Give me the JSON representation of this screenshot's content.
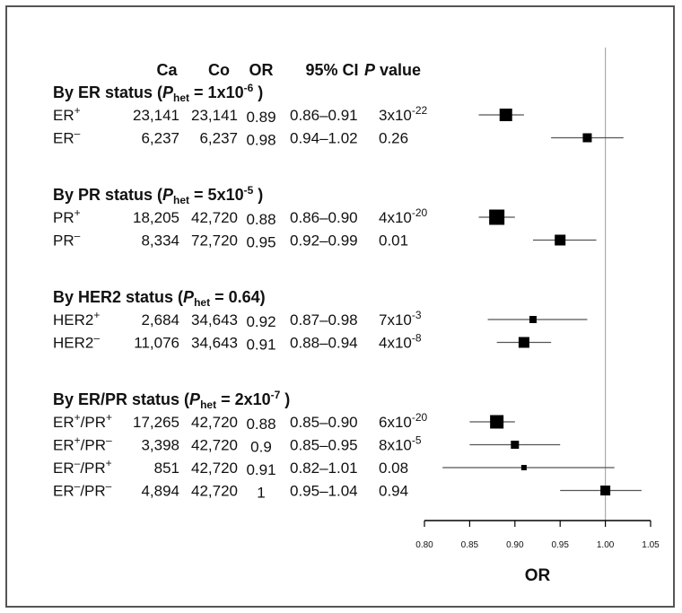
{
  "chart_data": {
    "type": "forest",
    "columns": {
      "ca": "Ca",
      "co": "Co",
      "or": "OR",
      "ci": "95% CI",
      "p_italic": "P",
      "p_rest": " value"
    },
    "groups": [
      {
        "label_pre": "By ER status (",
        "label_p": "P",
        "label_sub": "het",
        "label_eq": " = 1x10",
        "label_sup": "-6",
        "label_post": " )",
        "rows": [
          {
            "label": "ER",
            "label_sup": "+",
            "label2": "",
            "label2_sup": "",
            "ca": "23,141",
            "co": "23,141",
            "or_text": "0.89",
            "ci_text": "0.86–0.91",
            "p_base": "3x10",
            "p_exp": "-22",
            "or": 0.89,
            "lo": 0.86,
            "hi": 0.91,
            "size": 14
          },
          {
            "label": "ER",
            "label_sup": "–",
            "label2": "",
            "label2_sup": "",
            "ca": "6,237",
            "co": "6,237",
            "or_text": "0.98",
            "ci_text": "0.94–1.02",
            "p_base": "0.26",
            "p_exp": "",
            "or": 0.98,
            "lo": 0.94,
            "hi": 1.02,
            "size": 10
          }
        ]
      },
      {
        "label_pre": "By PR status (",
        "label_p": "P",
        "label_sub": "het",
        "label_eq": " = 5x10",
        "label_sup": "-5",
        "label_post": " )",
        "rows": [
          {
            "label": "PR",
            "label_sup": "+",
            "label2": "",
            "label2_sup": "",
            "ca": "18,205",
            "co": "42,720",
            "or_text": "0.88",
            "ci_text": "0.86–0.90",
            "p_base": "4x10",
            "p_exp": "-20",
            "or": 0.88,
            "lo": 0.86,
            "hi": 0.9,
            "size": 17
          },
          {
            "label": "PR",
            "label_sup": "–",
            "label2": "",
            "label2_sup": "",
            "ca": "8,334",
            "co": "72,720",
            "or_text": "0.95",
            "ci_text": "0.92–0.99",
            "p_base": "0.01",
            "p_exp": "",
            "or": 0.95,
            "lo": 0.92,
            "hi": 0.99,
            "size": 12
          }
        ]
      },
      {
        "label_pre": "By HER2 status (",
        "label_p": "P",
        "label_sub": "het",
        "label_eq": " = 0.64)",
        "label_sup": "",
        "label_post": "",
        "rows": [
          {
            "label": "HER2",
            "label_sup": "+",
            "label2": "",
            "label2_sup": "",
            "ca": "2,684",
            "co": "34,643",
            "or_text": "0.92",
            "ci_text": "0.87–0.98",
            "p_base": "7x10",
            "p_exp": "-3",
            "or": 0.92,
            "lo": 0.87,
            "hi": 0.98,
            "size": 8
          },
          {
            "label": "HER2",
            "label_sup": "–",
            "label2": "",
            "label2_sup": "",
            "ca": "11,076",
            "co": "34,643",
            "or_text": "0.91",
            "ci_text": "0.88–0.94",
            "p_base": "4x10",
            "p_exp": "-8",
            "or": 0.91,
            "lo": 0.88,
            "hi": 0.94,
            "size": 12
          }
        ]
      },
      {
        "label_pre": "By ER/PR status (",
        "label_p": "P",
        "label_sub": "het",
        "label_eq": " = 2x10",
        "label_sup": "-7",
        "label_post": " )",
        "rows": [
          {
            "label": "ER",
            "label_sup": "+",
            "label2": "/PR",
            "label2_sup": "+",
            "ca": "17,265",
            "co": "42,720",
            "or_text": "0.88",
            "ci_text": "0.85–0.90",
            "p_base": "6x10",
            "p_exp": "-20",
            "or": 0.88,
            "lo": 0.85,
            "hi": 0.9,
            "size": 15
          },
          {
            "label": "ER",
            "label_sup": "+",
            "label2": "/PR",
            "label2_sup": "–",
            "ca": "3,398",
            "co": "42,720",
            "or_text": "0.9",
            "ci_text": "0.85–0.95",
            "p_base": "8x10",
            "p_exp": "-5",
            "or": 0.9,
            "lo": 0.85,
            "hi": 0.95,
            "size": 9
          },
          {
            "label": "ER",
            "label_sup": "–",
            "label2": "/PR",
            "label2_sup": "+",
            "ca": "851",
            "co": "42,720",
            "or_text": "0.91",
            "ci_text": "0.82–1.01",
            "p_base": "0.08",
            "p_exp": "",
            "or": 0.91,
            "lo": 0.82,
            "hi": 1.01,
            "size": 6
          },
          {
            "label": "ER",
            "label_sup": "–",
            "label2": "/PR",
            "label2_sup": "–",
            "ca": "4,894",
            "co": "42,720",
            "or_text": "1",
            "ci_text": "0.95–1.04",
            "p_base": "0.94",
            "p_exp": "",
            "or": 1.0,
            "lo": 0.95,
            "hi": 1.04,
            "size": 11
          }
        ]
      }
    ],
    "xaxis": {
      "label": "OR",
      "ticks": [
        "0.80",
        "0.85",
        "0.90",
        "0.95",
        "1.00",
        "1.05"
      ],
      "range": [
        0.8,
        1.05
      ],
      "reference": 1.0
    },
    "colors": {
      "marker": "#000000",
      "ci_line": "#555555",
      "reference": "#aaaaaa",
      "axis": "#000000"
    }
  }
}
